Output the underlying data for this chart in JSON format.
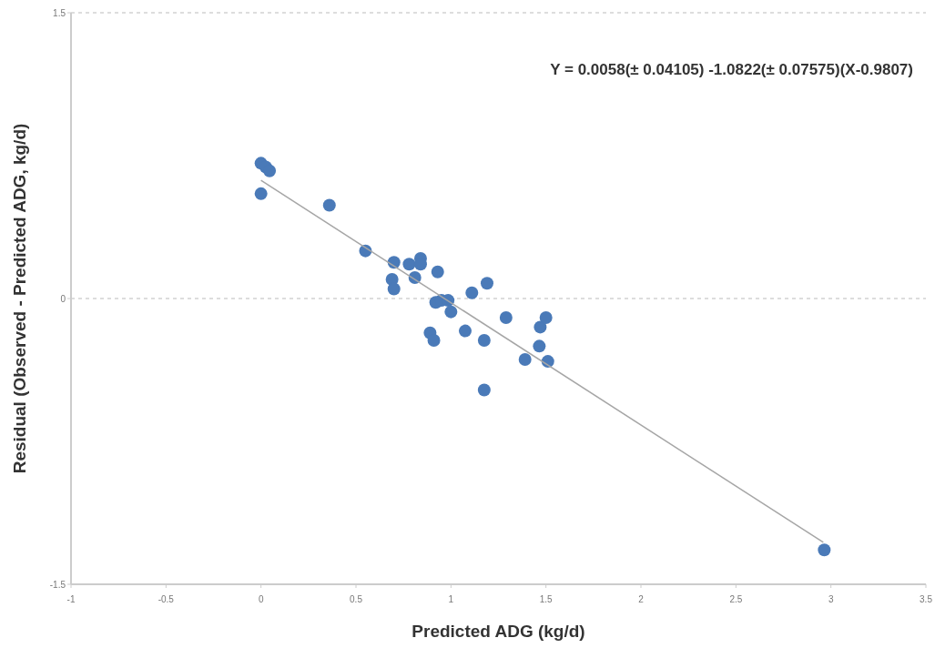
{
  "chart_data": {
    "type": "scatter",
    "xlabel": "Predicted ADG (kg/d)",
    "ylabel": "Residual (Observed - Predicted ADG, kg/d)",
    "annotations": [
      "Y = 0.0058(± 0.04105) -1.0822(± 0.07575)(X-0.9807)"
    ],
    "xlim": [
      -1,
      3.5
    ],
    "xticks": [
      -1,
      -0.5,
      0,
      0.5,
      1,
      1.5,
      2,
      2.5,
      3,
      3.5
    ],
    "ylim": [
      -1.5,
      1.5
    ],
    "yticks": [
      -1.5,
      0,
      1.5
    ],
    "grid": "y",
    "series": [
      {
        "color": "#4a7ab8",
        "marker": "circle",
        "x": [
          0,
          0.025,
          0.045,
          0,
          0.36,
          0.55,
          0.7,
          0.69,
          0.7,
          0.78,
          0.84,
          0.84,
          0.81,
          0.93,
          1.11,
          1.19,
          0.92,
          0.95,
          0.985,
          1.0,
          0.89,
          0.91,
          1.075,
          1.175,
          1.29,
          1.47,
          1.5,
          1.465,
          1.39,
          1.51,
          1.175,
          2.965
        ],
        "values": [
          0.71,
          0.69,
          0.67,
          0.55,
          0.49,
          0.25,
          0.19,
          0.1,
          0.05,
          0.18,
          0.21,
          0.18,
          0.11,
          0.14,
          0.03,
          0.08,
          -0.02,
          -0.01,
          -0.01,
          -0.07,
          -0.18,
          -0.22,
          -0.17,
          -0.22,
          -0.1,
          -0.15,
          -0.1,
          -0.25,
          -0.32,
          -0.33,
          -0.48,
          -1.32
        ]
      },
      {
        "type": "line",
        "color": "#a6a6a6",
        "x": [
          0,
          2.96
        ],
        "values": [
          0.62,
          -1.28
        ],
        "marker": "none"
      }
    ]
  }
}
